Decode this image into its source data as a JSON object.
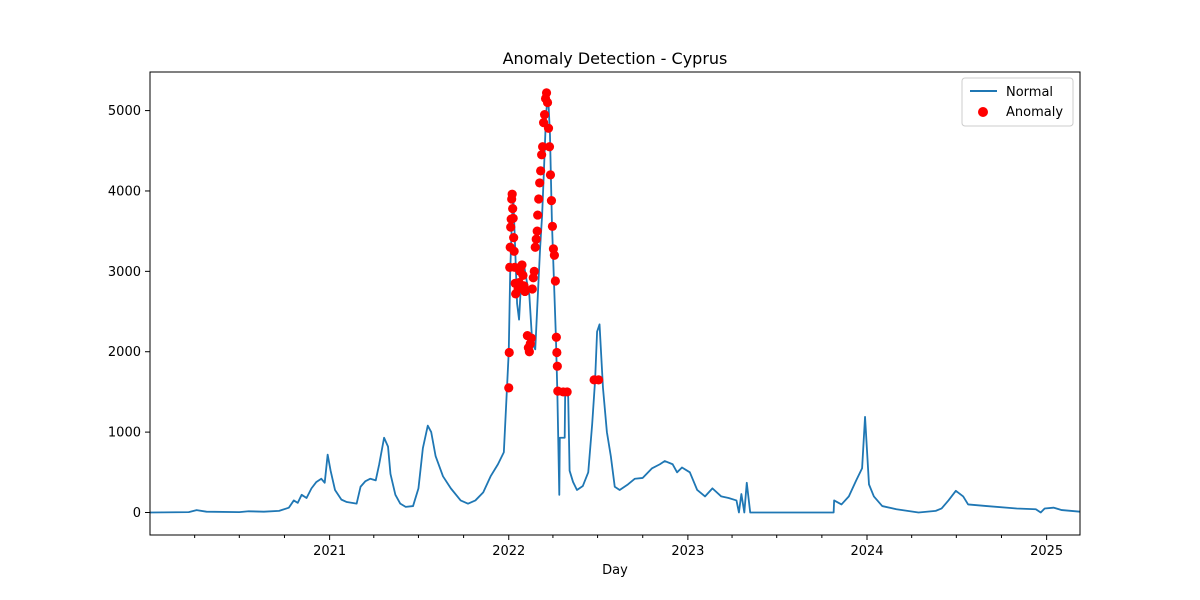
{
  "chart_data": {
    "type": "line",
    "title": "Anomaly Detection - Cyprus",
    "xlabel": "Day",
    "ylabel": "",
    "xlim": [
      "2020-01-01",
      "2025-03-10"
    ],
    "ylim": [
      -280,
      5480
    ],
    "grid": false,
    "legend": {
      "placement": "top-right"
    },
    "x_ticks": [
      {
        "date": "2021-01-01",
        "label": "2021"
      },
      {
        "date": "2022-01-01",
        "label": "2022"
      },
      {
        "date": "2023-01-01",
        "label": "2023"
      },
      {
        "date": "2024-01-01",
        "label": "2024"
      },
      {
        "date": "2025-01-01",
        "label": "2025"
      }
    ],
    "x_minor_ticks": [
      "2020-04-01",
      "2020-07-01",
      "2020-10-01",
      "2021-04-01",
      "2021-07-01",
      "2021-10-01",
      "2022-04-01",
      "2022-07-01",
      "2022-10-01",
      "2023-04-01",
      "2023-07-01",
      "2023-10-01",
      "2024-04-01",
      "2024-07-01",
      "2024-10-01"
    ],
    "y_ticks": [
      0,
      1000,
      2000,
      3000,
      4000,
      5000
    ],
    "series": [
      {
        "name": "Normal",
        "kind": "line",
        "color": "#1f77b4",
        "points": [
          [
            "2020-01-01",
            0
          ],
          [
            "2020-03-20",
            5
          ],
          [
            "2020-04-05",
            30
          ],
          [
            "2020-04-25",
            10
          ],
          [
            "2020-07-01",
            5
          ],
          [
            "2020-07-20",
            15
          ],
          [
            "2020-08-20",
            10
          ],
          [
            "2020-09-20",
            20
          ],
          [
            "2020-10-10",
            60
          ],
          [
            "2020-10-20",
            150
          ],
          [
            "2020-10-28",
            120
          ],
          [
            "2020-11-05",
            220
          ],
          [
            "2020-11-15",
            180
          ],
          [
            "2020-11-25",
            300
          ],
          [
            "2020-12-05",
            380
          ],
          [
            "2020-12-15",
            420
          ],
          [
            "2020-12-22",
            370
          ],
          [
            "2020-12-28",
            720
          ],
          [
            "2021-01-03",
            520
          ],
          [
            "2021-01-12",
            280
          ],
          [
            "2021-01-25",
            160
          ],
          [
            "2021-02-05",
            130
          ],
          [
            "2021-02-25",
            110
          ],
          [
            "2021-03-05",
            320
          ],
          [
            "2021-03-15",
            390
          ],
          [
            "2021-03-25",
            420
          ],
          [
            "2021-04-05",
            400
          ],
          [
            "2021-04-12",
            600
          ],
          [
            "2021-04-22",
            930
          ],
          [
            "2021-04-30",
            820
          ],
          [
            "2021-05-05",
            480
          ],
          [
            "2021-05-15",
            220
          ],
          [
            "2021-05-25",
            110
          ],
          [
            "2021-06-05",
            70
          ],
          [
            "2021-06-20",
            80
          ],
          [
            "2021-07-01",
            300
          ],
          [
            "2021-07-10",
            800
          ],
          [
            "2021-07-20",
            1080
          ],
          [
            "2021-07-27",
            1000
          ],
          [
            "2021-08-05",
            700
          ],
          [
            "2021-08-20",
            450
          ],
          [
            "2021-09-05",
            300
          ],
          [
            "2021-09-25",
            150
          ],
          [
            "2021-10-10",
            110
          ],
          [
            "2021-10-25",
            150
          ],
          [
            "2021-11-10",
            250
          ],
          [
            "2021-11-25",
            450
          ],
          [
            "2021-12-10",
            600
          ],
          [
            "2021-12-22",
            750
          ],
          [
            "2021-12-28",
            1500
          ],
          [
            "2022-01-01",
            2000
          ],
          [
            "2022-01-04",
            3000
          ],
          [
            "2022-01-07",
            3550
          ],
          [
            "2022-01-10",
            3960
          ],
          [
            "2022-01-14",
            3300
          ],
          [
            "2022-01-18",
            2600
          ],
          [
            "2022-01-22",
            2400
          ],
          [
            "2022-01-26",
            2850
          ],
          [
            "2022-02-01",
            3080
          ],
          [
            "2022-02-06",
            2900
          ],
          [
            "2022-02-12",
            2700
          ],
          [
            "2022-02-18",
            2100
          ],
          [
            "2022-02-24",
            2030
          ],
          [
            "2022-03-02",
            2800
          ],
          [
            "2022-03-06",
            3300
          ],
          [
            "2022-03-10",
            3700
          ],
          [
            "2022-03-14",
            4300
          ],
          [
            "2022-03-18",
            4950
          ],
          [
            "2022-03-22",
            5220
          ],
          [
            "2022-03-26",
            4700
          ],
          [
            "2022-03-30",
            3600
          ],
          [
            "2022-04-03",
            2900
          ],
          [
            "2022-04-07",
            2200
          ],
          [
            "2022-04-10",
            1500
          ],
          [
            "2022-04-14",
            220
          ],
          [
            "2022-04-15",
            930
          ],
          [
            "2022-04-25",
            930
          ],
          [
            "2022-04-26",
            1500
          ],
          [
            "2022-05-02",
            1480
          ],
          [
            "2022-05-05",
            520
          ],
          [
            "2022-05-12",
            380
          ],
          [
            "2022-05-20",
            280
          ],
          [
            "2022-06-01",
            330
          ],
          [
            "2022-06-12",
            500
          ],
          [
            "2022-06-20",
            1100
          ],
          [
            "2022-06-26",
            1650
          ],
          [
            "2022-06-30",
            2250
          ],
          [
            "2022-07-05",
            2340
          ],
          [
            "2022-07-12",
            1550
          ],
          [
            "2022-07-20",
            1000
          ],
          [
            "2022-07-28",
            700
          ],
          [
            "2022-08-05",
            320
          ],
          [
            "2022-08-15",
            280
          ],
          [
            "2022-09-01",
            350
          ],
          [
            "2022-09-15",
            420
          ],
          [
            "2022-10-01",
            430
          ],
          [
            "2022-10-20",
            550
          ],
          [
            "2022-11-05",
            600
          ],
          [
            "2022-11-15",
            640
          ],
          [
            "2022-12-01",
            600
          ],
          [
            "2022-12-10",
            500
          ],
          [
            "2022-12-20",
            560
          ],
          [
            "2023-01-05",
            500
          ],
          [
            "2023-01-20",
            280
          ],
          [
            "2023-02-05",
            200
          ],
          [
            "2023-02-20",
            300
          ],
          [
            "2023-03-10",
            200
          ],
          [
            "2023-03-25",
            180
          ],
          [
            "2023-04-10",
            150
          ],
          [
            "2023-04-15",
            0
          ],
          [
            "2023-04-20",
            230
          ],
          [
            "2023-04-26",
            0
          ],
          [
            "2023-05-01",
            370
          ],
          [
            "2023-05-08",
            0
          ],
          [
            "2023-10-25",
            0
          ],
          [
            "2023-10-26",
            150
          ],
          [
            "2023-11-10",
            100
          ],
          [
            "2023-11-25",
            200
          ],
          [
            "2023-12-10",
            400
          ],
          [
            "2023-12-22",
            550
          ],
          [
            "2023-12-28",
            1190
          ],
          [
            "2024-01-05",
            350
          ],
          [
            "2024-01-15",
            200
          ],
          [
            "2024-02-01",
            80
          ],
          [
            "2024-03-01",
            40
          ],
          [
            "2024-04-15",
            0
          ],
          [
            "2024-05-20",
            20
          ],
          [
            "2024-06-01",
            50
          ],
          [
            "2024-06-15",
            150
          ],
          [
            "2024-06-30",
            270
          ],
          [
            "2024-07-15",
            200
          ],
          [
            "2024-07-25",
            100
          ],
          [
            "2024-09-01",
            80
          ],
          [
            "2024-11-01",
            50
          ],
          [
            "2024-12-10",
            40
          ],
          [
            "2024-12-20",
            0
          ],
          [
            "2024-12-28",
            50
          ],
          [
            "2025-01-15",
            60
          ],
          [
            "2025-02-01",
            30
          ],
          [
            "2025-03-10",
            10
          ]
        ]
      },
      {
        "name": "Anomaly",
        "kind": "scatter",
        "color": "#ff0000",
        "points": [
          [
            "2022-01-01",
            1550
          ],
          [
            "2022-01-02",
            1990
          ],
          [
            "2022-01-03",
            3050
          ],
          [
            "2022-01-04",
            3300
          ],
          [
            "2022-01-05",
            3550
          ],
          [
            "2022-01-06",
            3650
          ],
          [
            "2022-01-07",
            3900
          ],
          [
            "2022-01-08",
            3960
          ],
          [
            "2022-01-09",
            3780
          ],
          [
            "2022-01-10",
            3660
          ],
          [
            "2022-01-11",
            3420
          ],
          [
            "2022-01-12",
            3250
          ],
          [
            "2022-01-13",
            3050
          ],
          [
            "2022-01-14",
            2850
          ],
          [
            "2022-01-15",
            2720
          ],
          [
            "2022-01-20",
            2780
          ],
          [
            "2022-01-22",
            2860
          ],
          [
            "2022-01-24",
            3000
          ],
          [
            "2022-01-26",
            3060
          ],
          [
            "2022-01-28",
            3080
          ],
          [
            "2022-01-30",
            2950
          ],
          [
            "2022-02-01",
            2820
          ],
          [
            "2022-02-03",
            2750
          ],
          [
            "2022-02-08",
            2200
          ],
          [
            "2022-02-10",
            2050
          ],
          [
            "2022-02-12",
            2000
          ],
          [
            "2022-02-14",
            2100
          ],
          [
            "2022-02-16",
            2170
          ],
          [
            "2022-02-18",
            2780
          ],
          [
            "2022-02-20",
            2920
          ],
          [
            "2022-02-22",
            3000
          ],
          [
            "2022-02-24",
            3300
          ],
          [
            "2022-02-26",
            3400
          ],
          [
            "2022-02-28",
            3500
          ],
          [
            "2022-03-01",
            3700
          ],
          [
            "2022-03-03",
            3900
          ],
          [
            "2022-03-05",
            4100
          ],
          [
            "2022-03-07",
            4250
          ],
          [
            "2022-03-09",
            4450
          ],
          [
            "2022-03-11",
            4550
          ],
          [
            "2022-03-13",
            4850
          ],
          [
            "2022-03-15",
            4950
          ],
          [
            "2022-03-17",
            5150
          ],
          [
            "2022-03-19",
            5220
          ],
          [
            "2022-03-21",
            5100
          ],
          [
            "2022-03-23",
            4780
          ],
          [
            "2022-03-25",
            4550
          ],
          [
            "2022-03-27",
            4200
          ],
          [
            "2022-03-29",
            3880
          ],
          [
            "2022-03-31",
            3560
          ],
          [
            "2022-04-02",
            3280
          ],
          [
            "2022-04-04",
            3200
          ],
          [
            "2022-04-06",
            2880
          ],
          [
            "2022-04-08",
            2180
          ],
          [
            "2022-04-09",
            1990
          ],
          [
            "2022-04-10",
            1820
          ],
          [
            "2022-04-11",
            1510
          ],
          [
            "2022-04-22",
            1500
          ],
          [
            "2022-04-30",
            1500
          ],
          [
            "2022-06-24",
            1650
          ],
          [
            "2022-07-03",
            1650
          ]
        ]
      }
    ]
  }
}
